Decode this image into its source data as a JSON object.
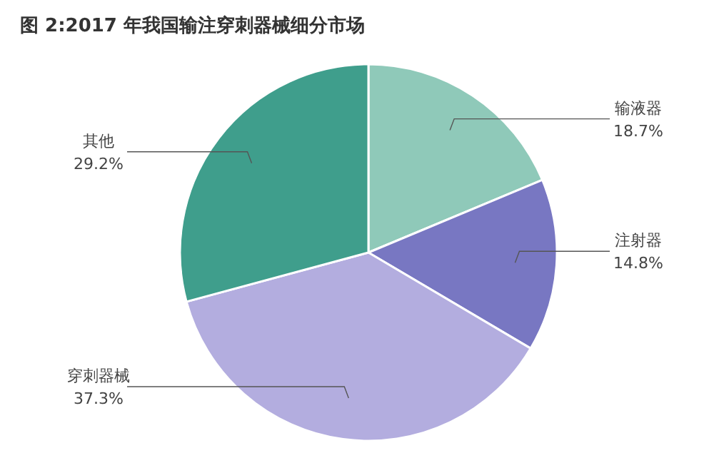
{
  "chart_data": {
    "type": "pie",
    "title": "图 2:2017 年我国输注穿刺器械细分市场",
    "categories": [
      "输液器",
      "注射器",
      "穿刺器械",
      "其他"
    ],
    "values": [
      18.7,
      14.8,
      37.3,
      29.2
    ],
    "value_labels": [
      "18.7%",
      "14.8%",
      "37.3%",
      "29.2%"
    ],
    "colors": [
      "#8fc9b9",
      "#7877c2",
      "#b3addf",
      "#3f9e8c"
    ]
  }
}
